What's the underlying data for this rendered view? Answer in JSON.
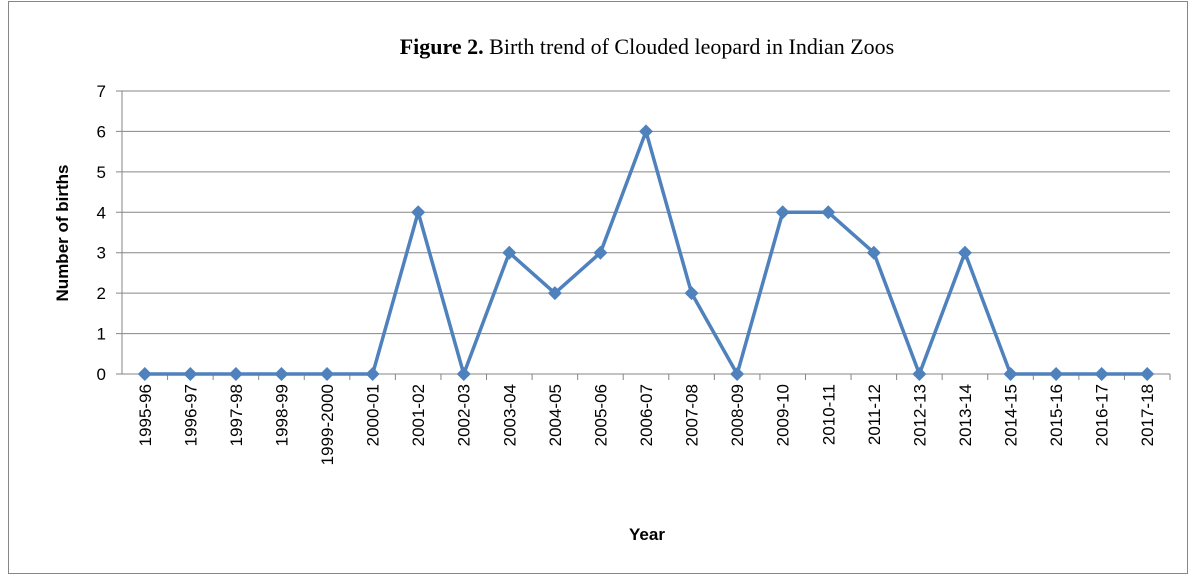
{
  "chart_data": {
    "type": "line",
    "title": [
      "Figure 2.",
      " Birth trend of Clouded leopard in Indian Zoos"
    ],
    "x_label": "Year",
    "y_label": "Number of births",
    "categories": [
      "1995-96",
      "1996-97",
      "1997-98",
      "1998-99",
      "1999-2000",
      "2000-01",
      "2001-02",
      "2002-03",
      "2003-04",
      "2004-05",
      "2005-06",
      "2006-07",
      "2007-08",
      "2008-09",
      "2009-10",
      "2010-11",
      "2011-12",
      "2012-13",
      "2013-14",
      "2014-15",
      "2015-16",
      "2016-17",
      "2017-18"
    ],
    "values": [
      0,
      0,
      0,
      0,
      0,
      0,
      4,
      0,
      3,
      2,
      3,
      6,
      2,
      0,
      4,
      4,
      3,
      0,
      3,
      0,
      0,
      0,
      0
    ],
    "color": "#4f81bd",
    "marker": "diamond",
    "ylim": [
      0,
      7
    ],
    "yticks": [
      0,
      1,
      2,
      3,
      4,
      5,
      6,
      7
    ],
    "grid": true
  }
}
